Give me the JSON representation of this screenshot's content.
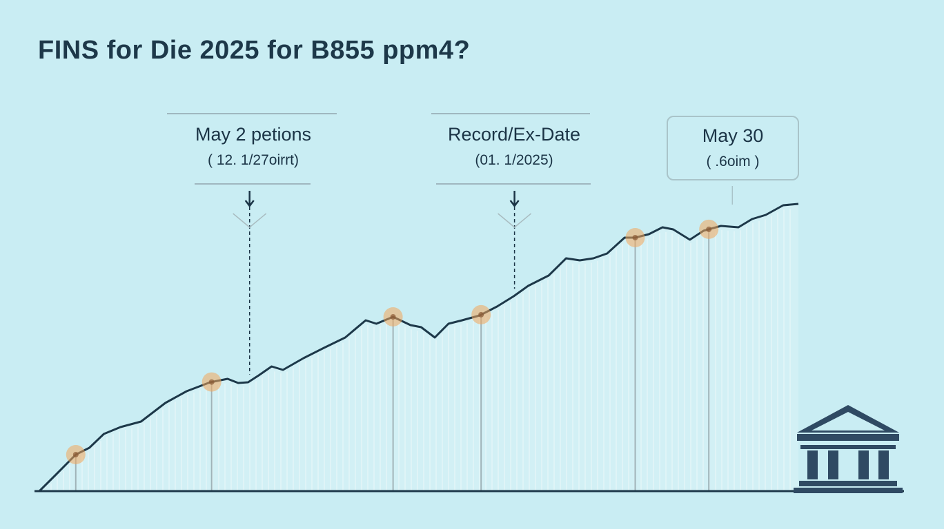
{
  "title": "FINS for Die 2025 for B855 ppm4?",
  "annotations": [
    {
      "label": "May 2 petions",
      "sub": "( 12. 1/27oirrt)"
    },
    {
      "label": "Record/Ex-Date",
      "sub": "(01. 1/2025)"
    },
    {
      "label": "May 30",
      "sub": "( .6oim )"
    }
  ],
  "colors": {
    "background": "#c9edf3",
    "line": "#1d3849",
    "marker": "#f2a65a"
  },
  "chart_data": {
    "type": "line",
    "title": "FINS for Die 2025 for B855 ppm4?",
    "xlabel": "",
    "ylabel": "",
    "xlim": [
      0,
      100
    ],
    "ylim": [
      0,
      100
    ],
    "grid": false,
    "x": [
      0,
      2.1,
      4.8,
      6.6,
      8.5,
      10.7,
      13.4,
      16.6,
      19.4,
      22.5,
      24.8,
      26.2,
      27.5,
      28.9,
      30.6,
      32.1,
      34.8,
      37.5,
      40.3,
      43,
      44.4,
      46.6,
      48.9,
      50.3,
      52.1,
      53.9,
      55.7,
      58,
      60.3,
      62.5,
      64.4,
      67.1,
      69.4,
      71.2,
      73,
      74.8,
      77.1,
      78.5,
      80.3,
      82.1,
      83.5,
      85.7,
      87.5,
      89.8,
      92.1,
      93.9,
      95.7,
      98,
      100
    ],
    "y": [
      0,
      4.6,
      10.6,
      12.6,
      16.6,
      18.6,
      20.2,
      25.6,
      29,
      31.6,
      32.6,
      31.4,
      31.6,
      33.6,
      36.2,
      35.2,
      38.6,
      41.6,
      44.6,
      49.6,
      48.6,
      50.6,
      48.2,
      47.6,
      44.6,
      48.6,
      49.6,
      51,
      53.6,
      56.6,
      59.6,
      62.6,
      67.6,
      67,
      67.6,
      69,
      73.6,
      73.6,
      74.6,
      76.6,
      76,
      73,
      75.6,
      77,
      76.6,
      79,
      80.2,
      83,
      83.4
    ],
    "markers_x": [
      4.8,
      22.7,
      46.6,
      58.2,
      78.5,
      88.2
    ],
    "annotation_x": [
      27.7,
      62.6,
      91.3
    ]
  }
}
